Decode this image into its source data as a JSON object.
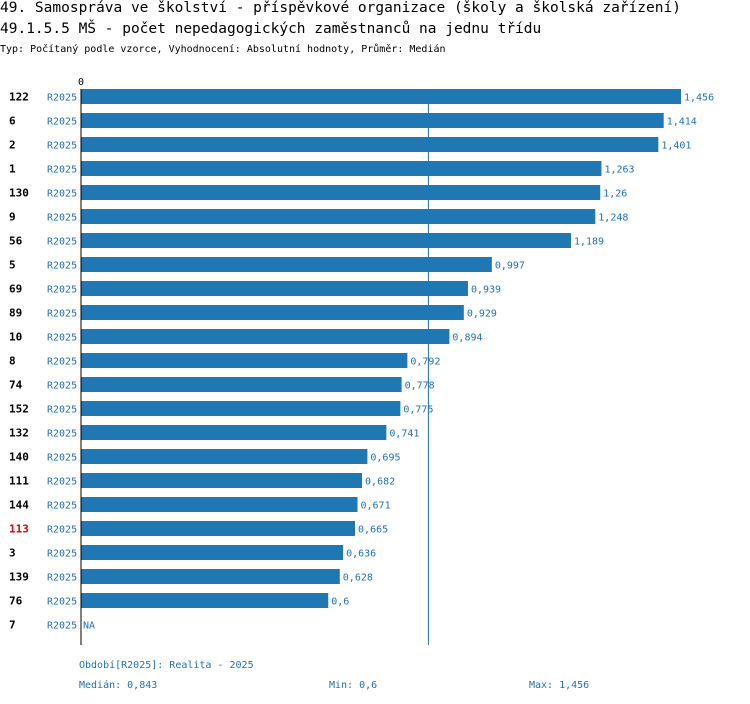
{
  "header": {
    "title": "49. Samospráva ve školství - příspěvkové organizace (školy a školská zařízení)",
    "subtitle": "49.1.5.5 MŠ - počet nepedagogických zaměstnanců na jednu třídu",
    "type_line": "Typ: Počítaný podle vzorce, Vyhodnocení: Absolutní hodnoty, Průměr: Medián"
  },
  "colors": {
    "bar": "#1f77b4",
    "value_text": "#1f6fb2",
    "highlight_label": "#dd0000",
    "axis": "#000000",
    "median_line": "#1f6fb2"
  },
  "chart_data": {
    "type": "bar",
    "orientation": "horizontal",
    "axis_zero_label": "0",
    "xlim": [
      0,
      1.456
    ],
    "median": 0.843,
    "series_label": "R2025",
    "highlight_category": "113",
    "categories": [
      "122",
      "6",
      "2",
      "1",
      "130",
      "9",
      "56",
      "5",
      "69",
      "89",
      "10",
      "8",
      "74",
      "152",
      "132",
      "140",
      "111",
      "144",
      "113",
      "3",
      "139",
      "76",
      "7"
    ],
    "values": [
      1.456,
      1.414,
      1.401,
      1.263,
      1.26,
      1.248,
      1.189,
      0.997,
      0.939,
      0.929,
      0.894,
      0.792,
      0.778,
      0.775,
      0.741,
      0.695,
      0.682,
      0.671,
      0.665,
      0.636,
      0.628,
      0.6,
      null
    ],
    "value_labels": [
      "1,456",
      "1,414",
      "1,401",
      "1,263",
      "1,26",
      "1,248",
      "1,189",
      "0,997",
      "0,939",
      "0,929",
      "0,894",
      "0,792",
      "0,778",
      "0,775",
      "0,741",
      "0,695",
      "0,682",
      "0,671",
      "0,665",
      "0,636",
      "0,628",
      "0,6",
      "NA"
    ]
  },
  "footer": {
    "period": "Období[R2025]: Realita - 2025",
    "median": "Medián: 0,843",
    "min": "Min: 0,6",
    "max": "Max: 1,456"
  }
}
